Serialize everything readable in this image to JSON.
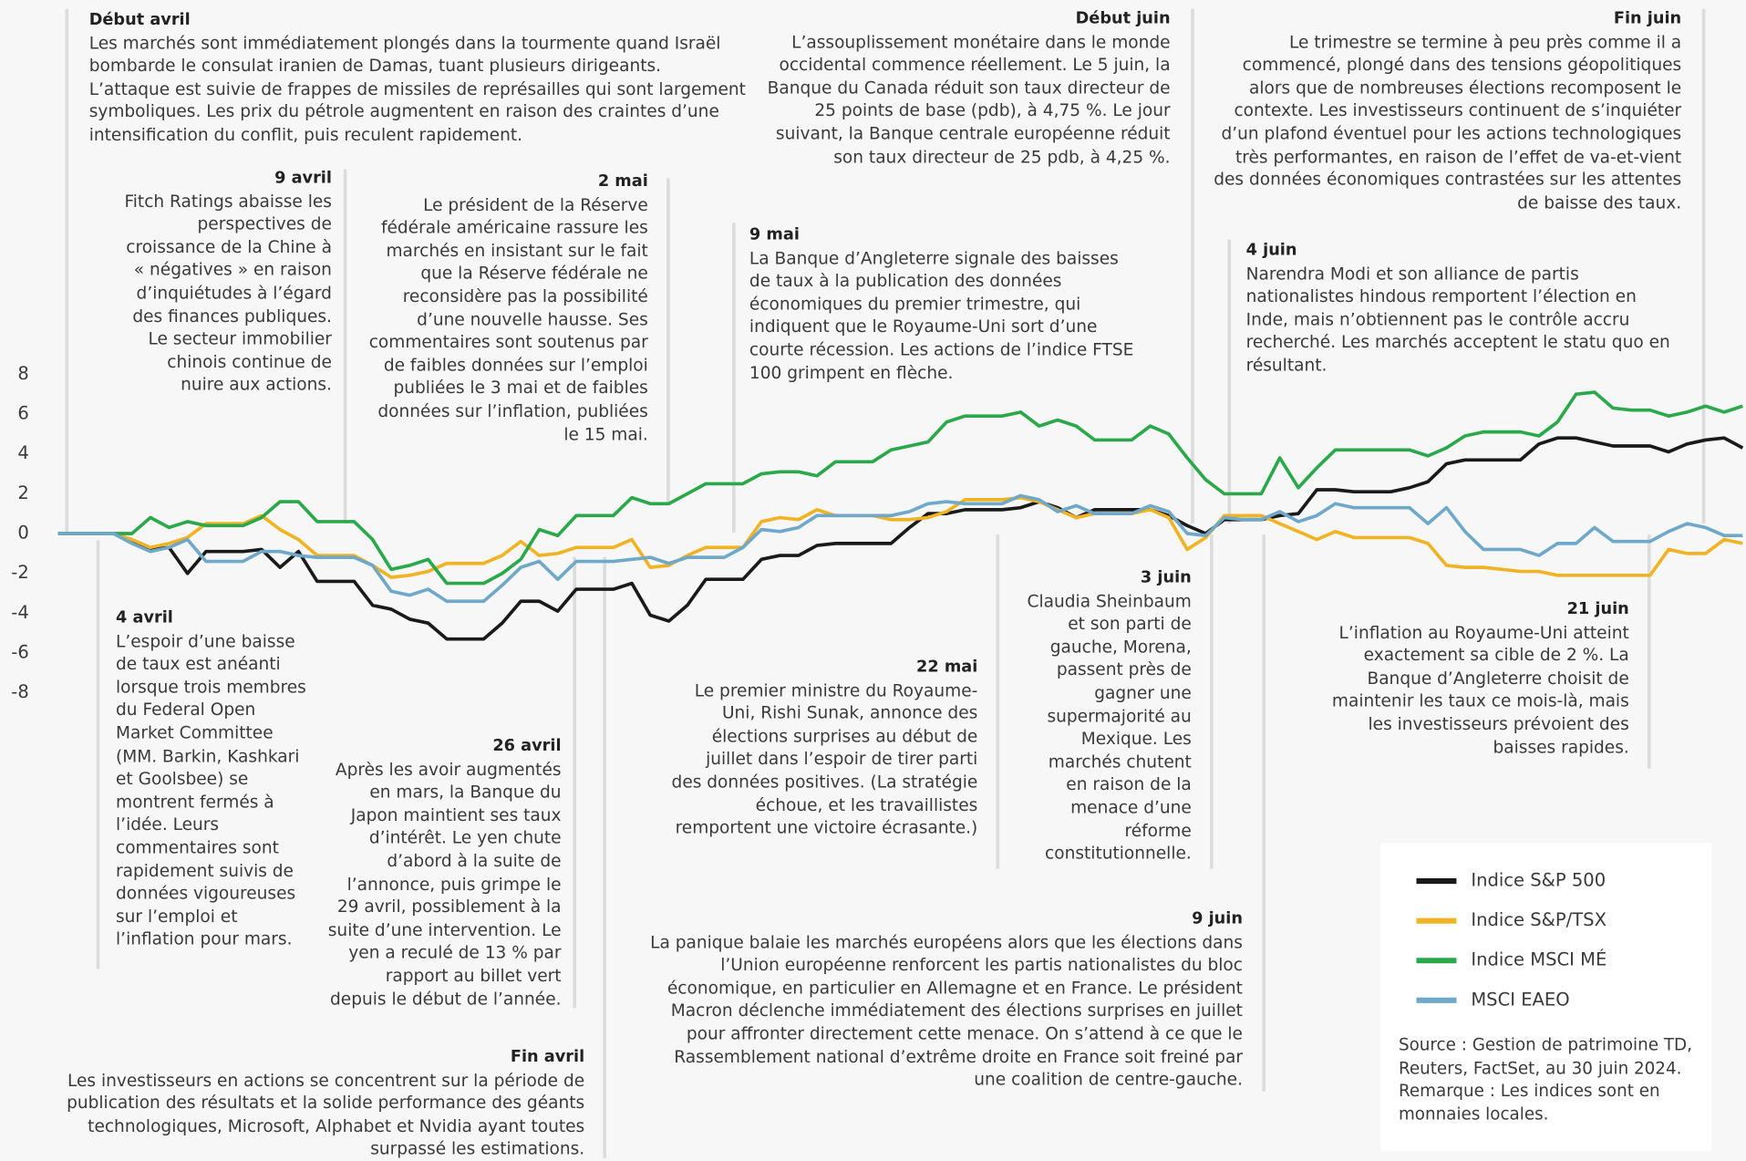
{
  "chart_data": {
    "type": "line",
    "ylim": [
      -8,
      8
    ],
    "yticks": [
      8,
      6,
      4,
      2,
      0,
      -2,
      -4,
      -6,
      -8
    ],
    "grid": false,
    "series": [
      {
        "name": "Indice S&P 500",
        "color": "#1a1a1a",
        "values": [
          0,
          0,
          0,
          0,
          -0.4,
          -0.8,
          -0.7,
          -2,
          -0.9,
          -0.9,
          -0.9,
          -0.8,
          -1.7,
          -0.9,
          -2.4,
          -2.4,
          -2.4,
          -3.6,
          -3.8,
          -4.3,
          -4.5,
          -5.3,
          -5.3,
          -5.3,
          -4.5,
          -3.4,
          -3.4,
          -3.9,
          -2.8,
          -2.8,
          -2.8,
          -2.5,
          -4.1,
          -4.4,
          -3.6,
          -2.3,
          -2.3,
          -2.3,
          -1.3,
          -1.1,
          -1.1,
          -0.6,
          -0.5,
          -0.5,
          -0.5,
          -0.5,
          0.3,
          1.0,
          1.0,
          1.2,
          1.2,
          1.2,
          1.3,
          1.6,
          1.3,
          0.8,
          1.2,
          1.2,
          1.2,
          1.2,
          0.9,
          0.4,
          0,
          0.7,
          0.7,
          0.7,
          0.9,
          1.0,
          2.2,
          2.2,
          2.1,
          2.1,
          2.1,
          2.3,
          2.6,
          3.5,
          3.7,
          3.7,
          3.7,
          3.7,
          4.5,
          4.8,
          4.8,
          4.6,
          4.4,
          4.4,
          4.4,
          4.1,
          4.5,
          4.7,
          4.8,
          4.3
        ]
      },
      {
        "name": "Indice S&P/TSX",
        "color": "#f0b323",
        "values": [
          0,
          0,
          0,
          0,
          -0.3,
          -0.7,
          -0.5,
          -0.2,
          0.5,
          0.5,
          0.5,
          0.9,
          0.2,
          -0.3,
          -1.1,
          -1.1,
          -1.1,
          -1.6,
          -2.2,
          -2.1,
          -1.9,
          -1.5,
          -1.5,
          -1.5,
          -1.1,
          -0.4,
          -1.1,
          -1.0,
          -0.7,
          -0.7,
          -0.7,
          -0.3,
          -1.7,
          -1.6,
          -1.1,
          -0.7,
          -0.7,
          -0.7,
          0.6,
          0.8,
          0.7,
          1.2,
          0.9,
          0.9,
          0.9,
          0.7,
          0.7,
          0.8,
          1.1,
          1.7,
          1.7,
          1.7,
          1.8,
          1.6,
          1.2,
          0.8,
          1.0,
          1.0,
          1.0,
          1.2,
          0.8,
          -0.8,
          -0.2,
          0.9,
          0.9,
          0.9,
          0.5,
          0.1,
          -0.3,
          0.1,
          -0.2,
          -0.2,
          -0.2,
          -0.2,
          -0.5,
          -1.6,
          -1.7,
          -1.7,
          -1.8,
          -1.9,
          -1.9,
          -2.1,
          -2.1,
          -2.1,
          -2.1,
          -2.1,
          -2.1,
          -0.8,
          -1.0,
          -1.0,
          -0.3,
          -0.5
        ]
      },
      {
        "name": "Indice MSCI MÉ",
        "color": "#2aa84a",
        "values": [
          0,
          0,
          0,
          0,
          0,
          0.8,
          0.3,
          0.6,
          0.4,
          0.4,
          0.4,
          0.8,
          1.6,
          1.6,
          0.6,
          0.6,
          0.6,
          -0.3,
          -1.8,
          -1.6,
          -1.3,
          -2.5,
          -2.5,
          -2.5,
          -2,
          -1.3,
          0.2,
          -0.1,
          0.9,
          0.9,
          0.9,
          1.8,
          1.5,
          1.5,
          2.0,
          2.5,
          2.5,
          2.5,
          3.0,
          3.1,
          3.1,
          2.9,
          3.6,
          3.6,
          3.6,
          4.2,
          4.4,
          4.6,
          5.6,
          5.9,
          5.9,
          5.9,
          6.1,
          5.4,
          5.7,
          5.4,
          4.7,
          4.7,
          4.7,
          5.4,
          5.0,
          3.8,
          2.7,
          2.0,
          2.0,
          2.0,
          3.8,
          2.3,
          3.3,
          4.2,
          4.2,
          4.2,
          4.2,
          4.2,
          3.9,
          4.3,
          4.9,
          5.1,
          5.1,
          5.1,
          4.9,
          5.6,
          7.0,
          7.1,
          6.3,
          6.2,
          6.2,
          5.9,
          6.1,
          6.4,
          6.1,
          6.4
        ]
      },
      {
        "name": "MSCI EAEO",
        "color": "#6fa8c8",
        "values": [
          0,
          0,
          0,
          0,
          -0.5,
          -0.9,
          -0.7,
          -0.3,
          -1.4,
          -1.4,
          -1.4,
          -0.9,
          -0.9,
          -1.1,
          -1.2,
          -1.2,
          -1.2,
          -1.6,
          -2.9,
          -3.1,
          -2.8,
          -3.4,
          -3.4,
          -3.4,
          -2.6,
          -1.7,
          -1.4,
          -2.3,
          -1.4,
          -1.4,
          -1.4,
          -1.3,
          -1.2,
          -1.5,
          -1.2,
          -1.2,
          -1.2,
          -0.7,
          0.2,
          0.1,
          0.3,
          0.9,
          0.9,
          0.9,
          0.9,
          0.9,
          1.1,
          1.5,
          1.6,
          1.5,
          1.5,
          1.5,
          1.9,
          1.7,
          1.1,
          1.4,
          1.0,
          1.0,
          1.0,
          1.4,
          1.1,
          0,
          -0.1,
          0.8,
          0.7,
          0.7,
          1.1,
          0.6,
          0.9,
          1.5,
          1.3,
          1.3,
          1.3,
          1.3,
          0.5,
          1.3,
          0.1,
          -0.8,
          -0.8,
          -0.8,
          -1.1,
          -0.5,
          -0.5,
          0.3,
          -0.4,
          -0.4,
          -0.4,
          0.1,
          0.5,
          0.3,
          -0.1,
          -0.1
        ]
      }
    ],
    "annotations": [
      {
        "date": "Début avril",
        "text": "Les marchés sont immédiatement plongés dans la tourmente quand Israël bombarde le consulat iranien de Damas, tuant plusieurs dirigeants. L’attaque est suivie de frappes de missiles de représailles qui sont largement symboliques. Les prix du pétrole augmentent en raison des craintes d’une intensification du conflit, puis reculent rapidement."
      },
      {
        "date": "9 avril",
        "text": "Fitch Ratings abaisse les perspectives de croissance de la Chine à « négatives » en raison d’inquiétudes à l’égard des finances publiques. Le secteur immobilier chinois continue de nuire aux actions."
      },
      {
        "date": "2 mai",
        "text": "Le président de la Réserve fédérale américaine rassure les marchés en insistant sur le fait que la Réserve fédérale ne reconsidère pas la possibilité d’une nouvelle hausse. Ses commentaires sont soutenus par de faibles données sur l’emploi publiées le 3 mai et de faibles données sur l’inflation, publiées le 15 mai."
      },
      {
        "date": "9 mai",
        "text": "La Banque d’Angleterre signale des baisses de taux à la publication des données économiques du premier trimestre, qui indiquent que le Royaume-Uni sort d’une courte récession. Les actions de l’indice FTSE 100 grimpent en flèche."
      },
      {
        "date": "Début juin",
        "text": "L’assouplissement monétaire dans le monde occidental commence réellement. Le 5 juin, la Banque du Canada réduit son taux directeur de 25 points de base (pdb), à 4,75 %. Le jour suivant, la Banque centrale européenne réduit son taux directeur de 25 pdb, à 4,25 %."
      },
      {
        "date": "Fin juin",
        "text": "Le trimestre se termine à peu près comme il a commencé, plongé dans des tensions géopolitiques alors que de nombreuses élections recomposent le contexte. Les investisseurs continuent de s’inquiéter d’un plafond éventuel pour les actions technologiques très performantes, en raison de l’effet de va-et-vient des données économiques contrastées sur les attentes de baisse des taux."
      },
      {
        "date": "4 juin",
        "text": "Narendra Modi et son alliance de partis nationalistes hindous remportent l’élection en Inde, mais n’obtiennent pas le contrôle accru recherché. Les marchés acceptent le statu quo en résultant."
      },
      {
        "date": "4 avril",
        "text": "L’espoir d’une baisse de taux est anéanti lorsque trois membres du Federal Open Market Committee (MM. Barkin, Kashkari et Goolsbee) se montrent fermés à l’idée. Leurs commentaires sont rapidement suivis de données vigoureuses sur l’emploi et l’inflation pour mars."
      },
      {
        "date": "26 avril",
        "text": "Après les avoir augmentés en mars, la Banque du Japon maintient ses taux d’intérêt. Le yen chute d’abord à la suite de l’annonce, puis grimpe le 29 avril, possiblement à la suite d’une intervention. Le yen a reculé de 13 % par rapport au billet vert depuis le début de l’année."
      },
      {
        "date": "Fin avril",
        "text": "Les investisseurs en actions se concentrent sur la période de publication des résultats et la solide performance des géants technologiques, Microsoft, Alphabet et Nvidia ayant toutes surpassé les estimations."
      },
      {
        "date": "22 mai",
        "text": "Le premier ministre du Royaume-Uni, Rishi Sunak, annonce des élections surprises au début de juillet dans l’espoir de tirer parti des données positives. (La stratégie échoue, et les travaillistes remportent une victoire écrasante.)"
      },
      {
        "date": "3 juin",
        "text": "Claudia Sheinbaum et son parti de gauche, Morena, passent près de gagner une supermajorité au Mexique. Les marchés chutent en raison de la menace d’une réforme constitutionnelle."
      },
      {
        "date": "9 juin",
        "text": "La panique balaie les marchés européens alors que les élections dans l’Union européenne renforcent les partis nationalistes du bloc économique, en particulier en Allemagne et en France. Le président Macron déclenche immédiatement des élections surprises en juillet pour affronter directement cette menace. On s’attend à ce que le Rassemblement national d’extrême droite en France soit freiné par une coalition de centre-gauche."
      },
      {
        "date": "21 juin",
        "text": "L’inflation au Royaume-Uni atteint exactement sa cible de 2 %. La Banque d’Angleterre choisit de maintenir les taux ce mois-là, mais les investisseurs prévoient des baisses rapides."
      }
    ],
    "note": "Source : Gestion de patrimoine TD, Reuters, FactSet, au 30 juin 2024. Remarque : Les indices sont en monnaies locales."
  }
}
